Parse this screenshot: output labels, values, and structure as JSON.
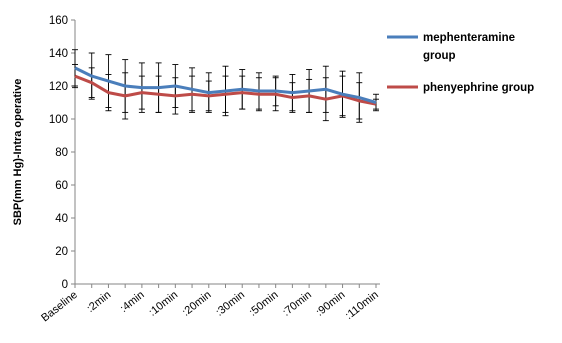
{
  "chart_data": {
    "type": "line",
    "ylabel": "SBP(mm Hg)-Intra operative",
    "xlabel": "",
    "ylim": [
      0,
      160
    ],
    "yticks": [
      0,
      20,
      40,
      60,
      80,
      100,
      120,
      140,
      160
    ],
    "categories": [
      "Baseline",
      "",
      ":2min",
      "",
      ":4min",
      "",
      ":10min",
      "",
      ":20min",
      "",
      ":30min",
      "",
      ":50min",
      "",
      ":70min",
      "",
      ":90min",
      "",
      ":110min"
    ],
    "series": [
      {
        "name": "mephenteramine group",
        "color": "#4a7ebb",
        "values": [
          131,
          126,
          123,
          120,
          119,
          119,
          120,
          118,
          116,
          117,
          118,
          117,
          117,
          116,
          117,
          118,
          115,
          113,
          110
        ],
        "error": [
          11,
          14,
          16,
          16,
          15,
          15,
          13,
          13,
          12,
          15,
          12,
          11,
          9,
          11,
          13,
          14,
          14,
          15,
          5
        ]
      },
      {
        "name": "phenyephrine group",
        "color": "#be4b48",
        "values": [
          126,
          122,
          116,
          114,
          116,
          115,
          114,
          115,
          114,
          115,
          116,
          115,
          115,
          113,
          114,
          112,
          114,
          111,
          109
        ],
        "error": [
          7,
          9,
          11,
          14,
          10,
          11,
          11,
          11,
          9,
          11,
          10,
          10,
          10,
          9,
          10,
          13,
          12,
          11,
          3
        ]
      }
    ],
    "legend_position": "right",
    "legend": [
      {
        "lines": [
          "mephenteramine",
          "group"
        ]
      },
      {
        "lines": [
          "phenyephrine group"
        ]
      }
    ]
  }
}
